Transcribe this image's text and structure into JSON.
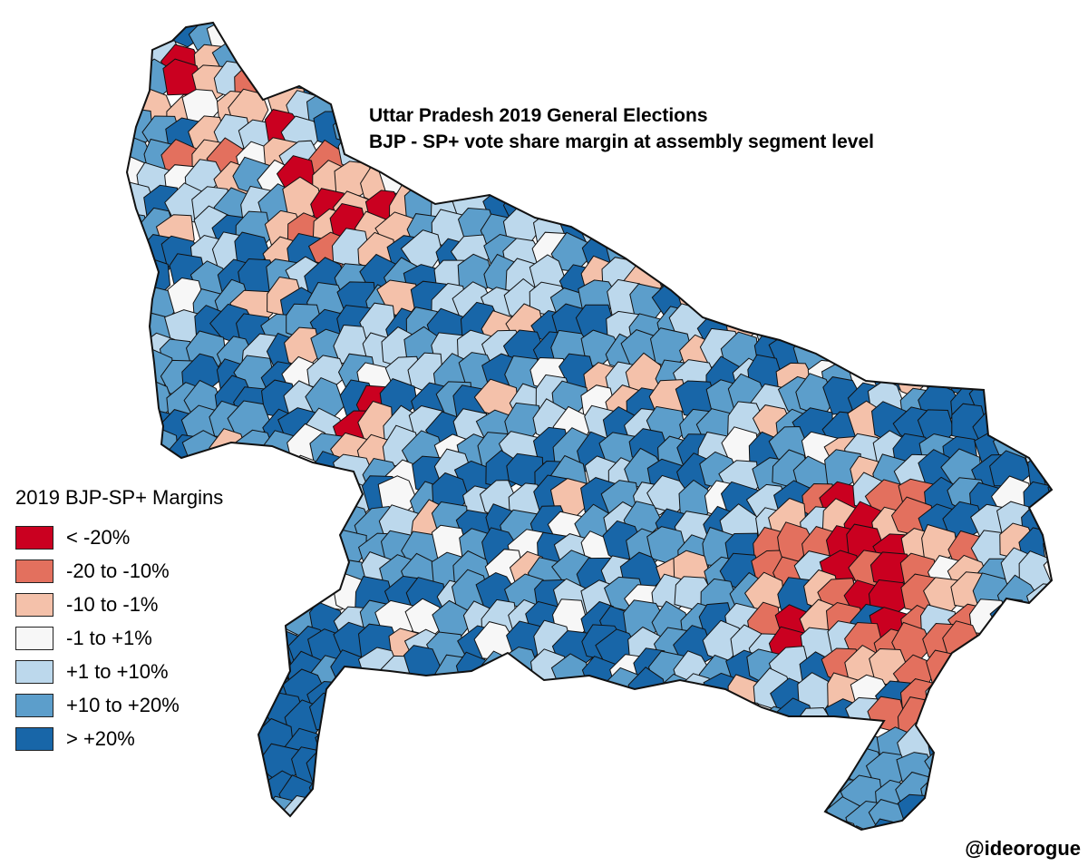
{
  "title": {
    "line1": "Uttar Pradesh 2019 General Elections",
    "line2": "BJP - SP+ vote share margin at assembly segment level"
  },
  "legend": {
    "title": "2019 BJP-SP+ Margins",
    "items": [
      {
        "label": "< -20%",
        "color": "#ca0020"
      },
      {
        "label": "-20 to -10%",
        "color": "#e3705e"
      },
      {
        "label": "-10 to -1%",
        "color": "#f4c1aa"
      },
      {
        "label": "-1 to +1%",
        "color": "#f7f7f7"
      },
      {
        "label": "+1 to +10%",
        "color": "#bcd8ec"
      },
      {
        "label": "+10 to +20%",
        "color": "#5c9ecb"
      },
      {
        "label": "> +20%",
        "color": "#1866a8"
      }
    ]
  },
  "credit": "@ideorogue",
  "map": {
    "region": "Uttar Pradesh",
    "unit": "assembly segment",
    "colors": {
      "strong_sp": "#ca0020",
      "sp": "#e3705e",
      "lean_sp": "#f4c1aa",
      "tie": "#f7f7f7",
      "lean_bjp": "#bcd8ec",
      "bjp": "#5c9ecb",
      "strong_bjp": "#1866a8",
      "border": "#111111"
    }
  }
}
